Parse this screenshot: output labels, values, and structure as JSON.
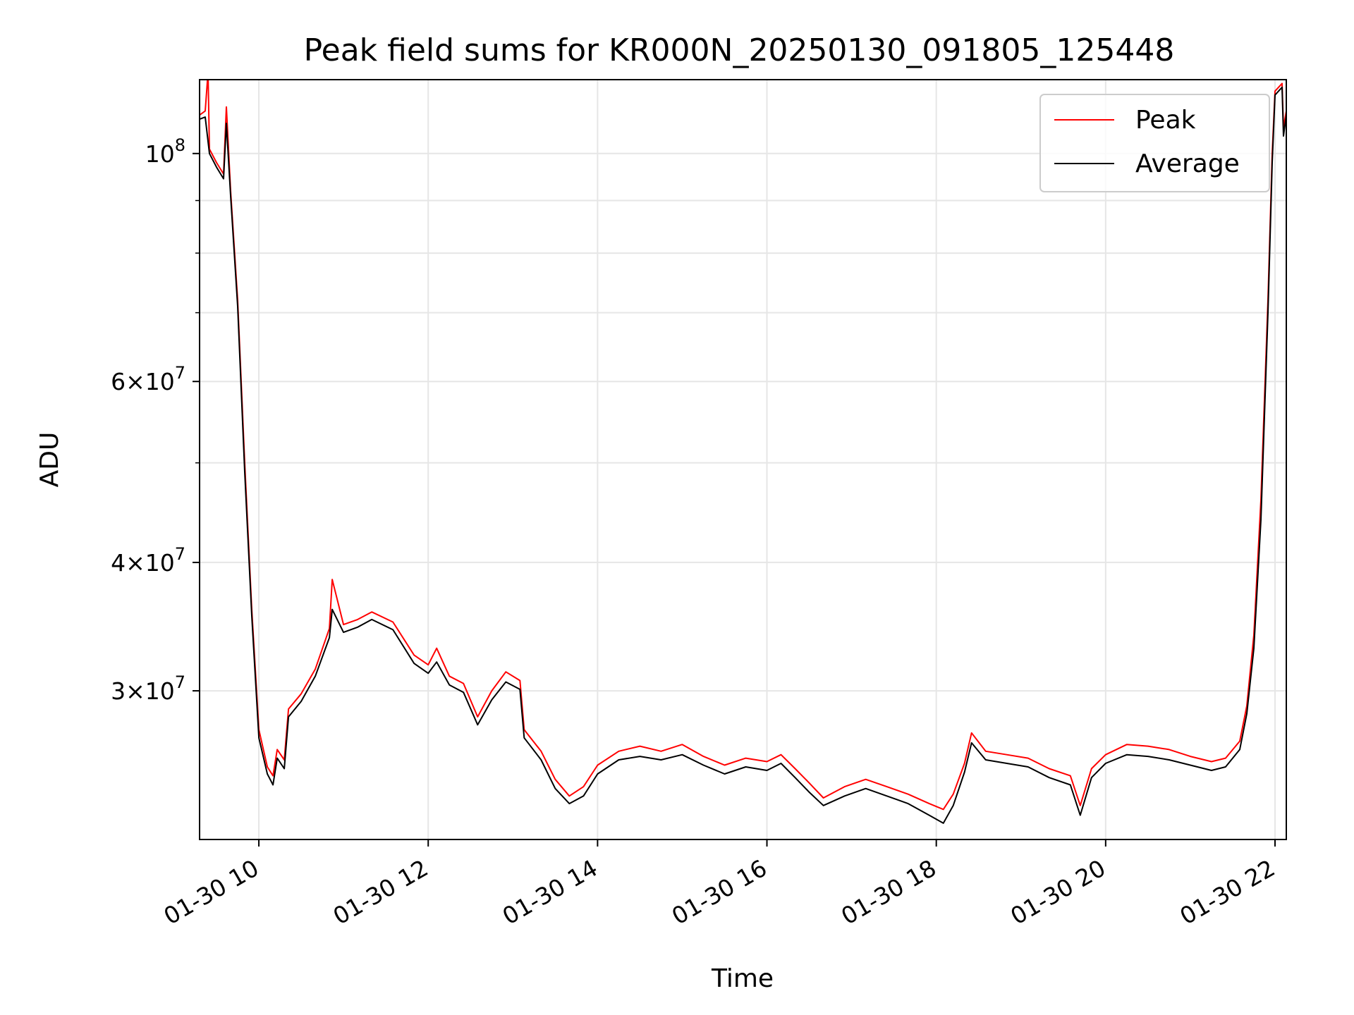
{
  "chart_data": {
    "type": "line",
    "title": "Peak field sums for KR000N_20250130_091805_125448",
    "xlabel": "Time",
    "ylabel": "ADU",
    "y_scale": "log",
    "ylim": [
      21500000,
      118000000
    ],
    "xlim": [
      "2025-01-30 09:18",
      "2025-01-30 22:08"
    ],
    "grid": true,
    "legend_position": "top-right",
    "x_ticks": [
      {
        "x": "2025-01-30 10:00",
        "label": "01-30 10"
      },
      {
        "x": "2025-01-30 12:00",
        "label": "01-30 12"
      },
      {
        "x": "2025-01-30 14:00",
        "label": "01-30 14"
      },
      {
        "x": "2025-01-30 16:00",
        "label": "01-30 16"
      },
      {
        "x": "2025-01-30 18:00",
        "label": "01-30 18"
      },
      {
        "x": "2025-01-30 20:00",
        "label": "01-30 20"
      },
      {
        "x": "2025-01-30 22:00",
        "label": "01-30 22"
      }
    ],
    "y_major_ticks": [
      {
        "value": 100000000,
        "mantissa": "",
        "exponent": "8"
      },
      {
        "value": 60000000,
        "mantissa": "6",
        "exponent": "7"
      },
      {
        "value": 40000000,
        "mantissa": "4",
        "exponent": "7"
      },
      {
        "value": 30000000,
        "mantissa": "3",
        "exponent": "7"
      }
    ],
    "y_minor_ticks": [
      90000000,
      80000000,
      70000000,
      50000000
    ],
    "series": [
      {
        "name": "Peak",
        "color": "#ff0000",
        "points": [
          [
            "2025-01-30 09:18",
            109000000
          ],
          [
            "2025-01-30 09:22",
            110000000
          ],
          [
            "2025-01-30 09:24",
            120000000
          ],
          [
            "2025-01-30 09:25",
            101000000
          ],
          [
            "2025-01-30 09:30",
            98000000
          ],
          [
            "2025-01-30 09:35",
            95500000
          ],
          [
            "2025-01-30 09:37",
            111000000
          ],
          [
            "2025-01-30 09:40",
            92000000
          ],
          [
            "2025-01-30 09:45",
            72000000
          ],
          [
            "2025-01-30 09:50",
            50000000
          ],
          [
            "2025-01-30 09:55",
            36000000
          ],
          [
            "2025-01-30 10:00",
            27500000
          ],
          [
            "2025-01-30 10:06",
            25300000
          ],
          [
            "2025-01-30 10:10",
            24800000
          ],
          [
            "2025-01-30 10:13",
            26300000
          ],
          [
            "2025-01-30 10:18",
            25700000
          ],
          [
            "2025-01-30 10:21",
            28800000
          ],
          [
            "2025-01-30 10:30",
            29800000
          ],
          [
            "2025-01-30 10:40",
            31500000
          ],
          [
            "2025-01-30 10:50",
            34500000
          ],
          [
            "2025-01-30 10:52",
            38500000
          ],
          [
            "2025-01-30 11:00",
            34800000
          ],
          [
            "2025-01-30 11:10",
            35200000
          ],
          [
            "2025-01-30 11:20",
            35800000
          ],
          [
            "2025-01-30 11:35",
            35000000
          ],
          [
            "2025-01-30 11:50",
            32500000
          ],
          [
            "2025-01-30 12:00",
            31800000
          ],
          [
            "2025-01-30 12:06",
            33000000
          ],
          [
            "2025-01-30 12:15",
            31000000
          ],
          [
            "2025-01-30 12:25",
            30500000
          ],
          [
            "2025-01-30 12:35",
            28300000
          ],
          [
            "2025-01-30 12:45",
            30000000
          ],
          [
            "2025-01-30 12:55",
            31300000
          ],
          [
            "2025-01-30 13:05",
            30700000
          ],
          [
            "2025-01-30 13:08",
            27500000
          ],
          [
            "2025-01-30 13:20",
            26200000
          ],
          [
            "2025-01-30 13:30",
            24600000
          ],
          [
            "2025-01-30 13:40",
            23700000
          ],
          [
            "2025-01-30 13:50",
            24200000
          ],
          [
            "2025-01-30 14:00",
            25400000
          ],
          [
            "2025-01-30 14:15",
            26200000
          ],
          [
            "2025-01-30 14:30",
            26500000
          ],
          [
            "2025-01-30 14:45",
            26200000
          ],
          [
            "2025-01-30 15:00",
            26600000
          ],
          [
            "2025-01-30 15:15",
            25900000
          ],
          [
            "2025-01-30 15:30",
            25400000
          ],
          [
            "2025-01-30 15:45",
            25800000
          ],
          [
            "2025-01-30 16:00",
            25600000
          ],
          [
            "2025-01-30 16:10",
            26000000
          ],
          [
            "2025-01-30 16:20",
            25200000
          ],
          [
            "2025-01-30 16:30",
            24400000
          ],
          [
            "2025-01-30 16:40",
            23600000
          ],
          [
            "2025-01-30 16:55",
            24200000
          ],
          [
            "2025-01-30 17:10",
            24600000
          ],
          [
            "2025-01-30 17:25",
            24200000
          ],
          [
            "2025-01-30 17:40",
            23800000
          ],
          [
            "2025-01-30 17:55",
            23300000
          ],
          [
            "2025-01-30 18:05",
            23000000
          ],
          [
            "2025-01-30 18:12",
            23800000
          ],
          [
            "2025-01-30 18:20",
            25500000
          ],
          [
            "2025-01-30 18:25",
            27300000
          ],
          [
            "2025-01-30 18:35",
            26200000
          ],
          [
            "2025-01-30 18:50",
            26000000
          ],
          [
            "2025-01-30 19:05",
            25800000
          ],
          [
            "2025-01-30 19:20",
            25200000
          ],
          [
            "2025-01-30 19:35",
            24800000
          ],
          [
            "2025-01-30 19:42",
            23200000
          ],
          [
            "2025-01-30 19:50",
            25200000
          ],
          [
            "2025-01-30 20:00",
            26000000
          ],
          [
            "2025-01-30 20:15",
            26600000
          ],
          [
            "2025-01-30 20:30",
            26500000
          ],
          [
            "2025-01-30 20:45",
            26300000
          ],
          [
            "2025-01-30 21:00",
            25900000
          ],
          [
            "2025-01-30 21:15",
            25600000
          ],
          [
            "2025-01-30 21:25",
            25800000
          ],
          [
            "2025-01-30 21:35",
            26800000
          ],
          [
            "2025-01-30 21:40",
            29000000
          ],
          [
            "2025-01-30 21:45",
            34000000
          ],
          [
            "2025-01-30 21:50",
            46000000
          ],
          [
            "2025-01-30 21:55",
            72000000
          ],
          [
            "2025-01-30 21:58",
            100000000
          ],
          [
            "2025-01-30 22:00",
            115000000
          ],
          [
            "2025-01-30 22:05",
            117000000
          ],
          [
            "2025-01-30 22:06",
            106000000
          ],
          [
            "2025-01-30 22:08",
            110000000
          ]
        ]
      },
      {
        "name": "Average",
        "color": "#000000",
        "points": [
          [
            "2025-01-30 09:18",
            108000000
          ],
          [
            "2025-01-30 09:22",
            108500000
          ],
          [
            "2025-01-30 09:25",
            100000000
          ],
          [
            "2025-01-30 09:30",
            97000000
          ],
          [
            "2025-01-30 09:35",
            94500000
          ],
          [
            "2025-01-30 09:37",
            107000000
          ],
          [
            "2025-01-30 09:40",
            91000000
          ],
          [
            "2025-01-30 09:45",
            71000000
          ],
          [
            "2025-01-30 09:50",
            49000000
          ],
          [
            "2025-01-30 09:55",
            35500000
          ],
          [
            "2025-01-30 10:00",
            27000000
          ],
          [
            "2025-01-30 10:06",
            24900000
          ],
          [
            "2025-01-30 10:10",
            24300000
          ],
          [
            "2025-01-30 10:13",
            25800000
          ],
          [
            "2025-01-30 10:18",
            25200000
          ],
          [
            "2025-01-30 10:21",
            28300000
          ],
          [
            "2025-01-30 10:30",
            29300000
          ],
          [
            "2025-01-30 10:40",
            31000000
          ],
          [
            "2025-01-30 10:50",
            33800000
          ],
          [
            "2025-01-30 10:52",
            36000000
          ],
          [
            "2025-01-30 11:00",
            34200000
          ],
          [
            "2025-01-30 11:10",
            34600000
          ],
          [
            "2025-01-30 11:20",
            35200000
          ],
          [
            "2025-01-30 11:35",
            34400000
          ],
          [
            "2025-01-30 11:50",
            31900000
          ],
          [
            "2025-01-30 12:00",
            31200000
          ],
          [
            "2025-01-30 12:06",
            32000000
          ],
          [
            "2025-01-30 12:15",
            30400000
          ],
          [
            "2025-01-30 12:25",
            29900000
          ],
          [
            "2025-01-30 12:35",
            27800000
          ],
          [
            "2025-01-30 12:45",
            29400000
          ],
          [
            "2025-01-30 12:55",
            30600000
          ],
          [
            "2025-01-30 13:05",
            30100000
          ],
          [
            "2025-01-30 13:08",
            27000000
          ],
          [
            "2025-01-30 13:20",
            25700000
          ],
          [
            "2025-01-30 13:30",
            24100000
          ],
          [
            "2025-01-30 13:40",
            23300000
          ],
          [
            "2025-01-30 13:50",
            23700000
          ],
          [
            "2025-01-30 14:00",
            24900000
          ],
          [
            "2025-01-30 14:15",
            25700000
          ],
          [
            "2025-01-30 14:30",
            25900000
          ],
          [
            "2025-01-30 14:45",
            25700000
          ],
          [
            "2025-01-30 15:00",
            26000000
          ],
          [
            "2025-01-30 15:15",
            25400000
          ],
          [
            "2025-01-30 15:30",
            24900000
          ],
          [
            "2025-01-30 15:45",
            25300000
          ],
          [
            "2025-01-30 16:00",
            25100000
          ],
          [
            "2025-01-30 16:10",
            25500000
          ],
          [
            "2025-01-30 16:20",
            24700000
          ],
          [
            "2025-01-30 16:30",
            23900000
          ],
          [
            "2025-01-30 16:40",
            23200000
          ],
          [
            "2025-01-30 16:55",
            23700000
          ],
          [
            "2025-01-30 17:10",
            24100000
          ],
          [
            "2025-01-30 17:25",
            23700000
          ],
          [
            "2025-01-30 17:40",
            23300000
          ],
          [
            "2025-01-30 17:55",
            22700000
          ],
          [
            "2025-01-30 18:05",
            22300000
          ],
          [
            "2025-01-30 18:12",
            23200000
          ],
          [
            "2025-01-30 18:20",
            25000000
          ],
          [
            "2025-01-30 18:25",
            26700000
          ],
          [
            "2025-01-30 18:35",
            25700000
          ],
          [
            "2025-01-30 18:50",
            25500000
          ],
          [
            "2025-01-30 19:05",
            25300000
          ],
          [
            "2025-01-30 19:20",
            24700000
          ],
          [
            "2025-01-30 19:35",
            24300000
          ],
          [
            "2025-01-30 19:42",
            22700000
          ],
          [
            "2025-01-30 19:50",
            24700000
          ],
          [
            "2025-01-30 20:00",
            25500000
          ],
          [
            "2025-01-30 20:15",
            26000000
          ],
          [
            "2025-01-30 20:30",
            25900000
          ],
          [
            "2025-01-30 20:45",
            25700000
          ],
          [
            "2025-01-30 21:00",
            25400000
          ],
          [
            "2025-01-30 21:15",
            25100000
          ],
          [
            "2025-01-30 21:25",
            25300000
          ],
          [
            "2025-01-30 21:35",
            26300000
          ],
          [
            "2025-01-30 21:40",
            28500000
          ],
          [
            "2025-01-30 21:45",
            33000000
          ],
          [
            "2025-01-30 21:50",
            44000000
          ],
          [
            "2025-01-30 21:55",
            70000000
          ],
          [
            "2025-01-30 21:58",
            98000000
          ],
          [
            "2025-01-30 22:00",
            114000000
          ],
          [
            "2025-01-30 22:05",
            116000000
          ],
          [
            "2025-01-30 22:06",
            104000000
          ],
          [
            "2025-01-30 22:08",
            109000000
          ]
        ]
      }
    ]
  }
}
